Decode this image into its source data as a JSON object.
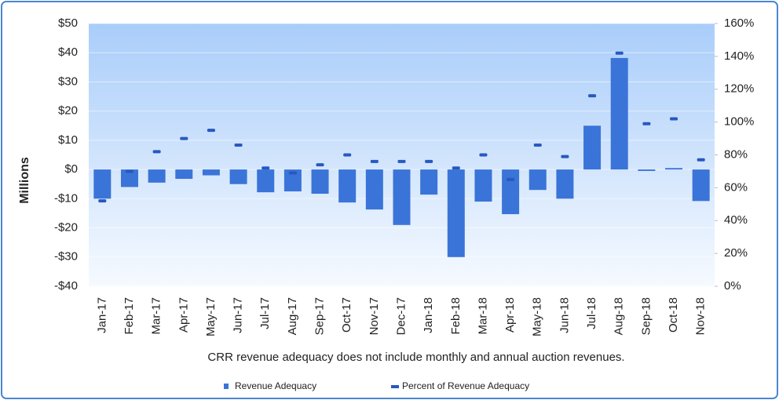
{
  "chart_data": {
    "type": "bar",
    "y_label": "Millions",
    "note": "CRR revenue adequacy does not include monthly and annual  auction revenues.",
    "categories": [
      "Jan-17",
      "Feb-17",
      "Mar-17",
      "Apr-17",
      "May-17",
      "Jun-17",
      "Jul-17",
      "Aug-17",
      "Sep-17",
      "Oct-17",
      "Nov-17",
      "Dec-17",
      "Jan-18",
      "Feb-18",
      "Mar-18",
      "Apr-18",
      "May-18",
      "Jun-18",
      "Jul-18",
      "Aug-18",
      "Sep-18",
      "Oct-18",
      "Nov-18"
    ],
    "series": [
      {
        "name": "Revenue Adequacy",
        "color": "#3a74d8",
        "values": [
          -10,
          -6,
          -4.5,
          -3.2,
          -2,
          -5,
          -7.8,
          -7.5,
          -8.3,
          -11.3,
          -13.7,
          -19,
          -8.6,
          -30,
          -11,
          -15.3,
          -7,
          -10,
          15,
          38.2,
          -0.5,
          0.5,
          -10.8
        ]
      },
      {
        "name": "Percent of Revenue Adequacy",
        "color": "#2858c0",
        "axis": "y2",
        "marker": "dash",
        "values": [
          52,
          70,
          82,
          90,
          95,
          86,
          72,
          69,
          74,
          80,
          76,
          76,
          76,
          72,
          80,
          65,
          86,
          79,
          116,
          142,
          99,
          102,
          77
        ]
      }
    ],
    "ylim": [
      -40,
      50
    ],
    "yticks": [
      {
        "value": -40,
        "label": "-$40"
      },
      {
        "value": -30,
        "label": "-$30"
      },
      {
        "value": -20,
        "label": "-$20"
      },
      {
        "value": -10,
        "label": "-$10"
      },
      {
        "value": 0,
        "label": "$0"
      },
      {
        "value": 10,
        "label": "$10"
      },
      {
        "value": 20,
        "label": "$20"
      },
      {
        "value": 30,
        "label": "$30"
      },
      {
        "value": 40,
        "label": "$40"
      },
      {
        "value": 50,
        "label": "$50"
      }
    ],
    "y2lim": [
      0,
      160
    ],
    "y2ticks": [
      {
        "value": 0,
        "label": "0%"
      },
      {
        "value": 20,
        "label": "20%"
      },
      {
        "value": 40,
        "label": "40%"
      },
      {
        "value": 60,
        "label": "60%"
      },
      {
        "value": 80,
        "label": "80%"
      },
      {
        "value": 100,
        "label": "100%"
      },
      {
        "value": 120,
        "label": "120%"
      },
      {
        "value": 140,
        "label": "140%"
      },
      {
        "value": 160,
        "label": "160%"
      }
    ],
    "grid": true
  }
}
